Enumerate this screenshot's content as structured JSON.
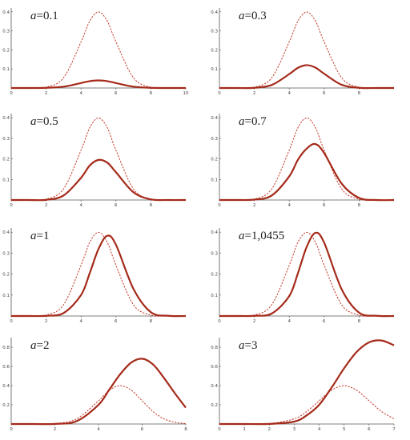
{
  "colors": {
    "curve": "#a52a1a",
    "reference": "#c0392b",
    "axis": "#555555"
  },
  "chart_data": [
    {
      "type": "line",
      "label_var": "a",
      "label_value": "=0.1",
      "xlim": [
        0,
        10
      ],
      "ylim": [
        0,
        0.42
      ],
      "xticks": [
        "0",
        "2",
        "4",
        "6",
        "8",
        "10"
      ],
      "yticks": [
        "0.1",
        "0.2",
        "0.3",
        "0.4"
      ],
      "x": [
        0,
        1,
        2,
        3,
        4,
        4.5,
        5,
        5.5,
        6,
        7,
        8,
        9,
        10
      ],
      "solid": [
        0,
        0,
        0.001,
        0.007,
        0.026,
        0.036,
        0.04,
        0.036,
        0.026,
        0.007,
        0.001,
        0,
        0
      ],
      "dashed": [
        0,
        0,
        0.004,
        0.054,
        0.242,
        0.352,
        0.399,
        0.352,
        0.242,
        0.054,
        0.004,
        0,
        0
      ]
    },
    {
      "type": "line",
      "label_var": "a",
      "label_value": "=0.3",
      "xlim": [
        0,
        10
      ],
      "ylim": [
        0,
        0.42
      ],
      "xticks": [
        "0",
        "2",
        "4",
        "6",
        "8"
      ],
      "yticks": [
        "0.1",
        "0.2",
        "0.3",
        "0.4"
      ],
      "x": [
        0,
        1,
        2,
        3,
        4,
        4.5,
        5,
        5.5,
        6,
        7,
        8,
        9,
        10
      ],
      "solid": [
        0,
        0,
        0.001,
        0.016,
        0.073,
        0.106,
        0.12,
        0.107,
        0.075,
        0.017,
        0.001,
        0,
        0
      ],
      "dashed": [
        0,
        0,
        0.004,
        0.054,
        0.242,
        0.352,
        0.399,
        0.352,
        0.242,
        0.054,
        0.004,
        0,
        0
      ]
    },
    {
      "type": "line",
      "label_var": "a",
      "label_value": "=0.5",
      "xlim": [
        0,
        10
      ],
      "ylim": [
        0,
        0.42
      ],
      "xticks": [
        "0",
        "2",
        "4",
        "6",
        "8"
      ],
      "yticks": [
        "0.1",
        "0.2",
        "0.3",
        "0.4"
      ],
      "x": [
        0,
        1,
        2,
        3,
        4,
        4.5,
        5,
        5.5,
        6,
        7,
        8,
        9,
        10
      ],
      "solid": [
        0,
        0,
        0.001,
        0.022,
        0.108,
        0.168,
        0.195,
        0.182,
        0.135,
        0.038,
        0.003,
        0,
        0
      ],
      "dashed": [
        0,
        0,
        0.004,
        0.054,
        0.242,
        0.352,
        0.399,
        0.352,
        0.242,
        0.054,
        0.004,
        0,
        0
      ]
    },
    {
      "type": "line",
      "label_var": "a",
      "label_value": "=0.7",
      "xlim": [
        0,
        10
      ],
      "ylim": [
        0,
        0.42
      ],
      "xticks": [
        "0",
        "2",
        "4",
        "6",
        "8"
      ],
      "yticks": [
        "0.1",
        "0.2",
        "0.3",
        "0.4"
      ],
      "x": [
        0,
        1,
        2,
        3,
        4,
        4.5,
        5,
        5.5,
        6,
        7,
        8,
        9,
        10
      ],
      "solid": [
        0,
        0,
        0.002,
        0.022,
        0.115,
        0.196,
        0.25,
        0.272,
        0.228,
        0.08,
        0.01,
        0,
        0
      ],
      "dashed": [
        0,
        0,
        0.004,
        0.054,
        0.242,
        0.352,
        0.399,
        0.352,
        0.242,
        0.054,
        0.004,
        0,
        0
      ]
    },
    {
      "type": "line",
      "label_var": "a",
      "label_value": "=1",
      "xlim": [
        0,
        10
      ],
      "ylim": [
        0,
        0.42
      ],
      "xticks": [
        "0",
        "2",
        "4",
        "6",
        "8"
      ],
      "yticks": [
        "0.1",
        "0.2",
        "0.3",
        "0.4"
      ],
      "x": [
        0,
        1,
        2,
        3,
        4,
        4.5,
        5,
        5.5,
        6,
        7,
        8,
        9,
        10
      ],
      "solid": [
        0,
        0,
        0.001,
        0.014,
        0.1,
        0.205,
        0.32,
        0.383,
        0.34,
        0.13,
        0.018,
        0.001,
        0
      ],
      "dashed": [
        0,
        0,
        0.004,
        0.054,
        0.242,
        0.352,
        0.399,
        0.352,
        0.242,
        0.054,
        0.004,
        0,
        0
      ]
    },
    {
      "type": "line",
      "label_var": "a",
      "label_value": "=1,0455",
      "xlim": [
        0,
        10
      ],
      "ylim": [
        0,
        0.42
      ],
      "xticks": [
        "0",
        "2",
        "4",
        "6",
        "8"
      ],
      "yticks": [
        "0.1",
        "0.2",
        "0.3",
        "0.4"
      ],
      "x": [
        0,
        1,
        2,
        3,
        4,
        4.5,
        5,
        5.5,
        6,
        7,
        8,
        9,
        10
      ],
      "solid": [
        0,
        0,
        0.001,
        0.012,
        0.095,
        0.205,
        0.33,
        0.397,
        0.35,
        0.128,
        0.016,
        0.001,
        0
      ],
      "dashed": [
        0,
        0,
        0.004,
        0.054,
        0.242,
        0.352,
        0.399,
        0.352,
        0.242,
        0.054,
        0.004,
        0,
        0
      ]
    },
    {
      "type": "line",
      "label_var": "a",
      "label_value": "=2",
      "xlim": [
        0,
        8
      ],
      "ylim": [
        0,
        0.9
      ],
      "xticks": [
        "0",
        "2",
        "4",
        "6",
        "8"
      ],
      "yticks": [
        "0.2",
        "0.4",
        "0.6",
        "0.8"
      ],
      "x": [
        0,
        1,
        2,
        3,
        4,
        4.5,
        5,
        5.5,
        6,
        6.5,
        7,
        7.5,
        8
      ],
      "solid": [
        0,
        0,
        0.001,
        0.03,
        0.2,
        0.36,
        0.52,
        0.64,
        0.68,
        0.62,
        0.48,
        0.32,
        0.17
      ],
      "dashed": [
        0,
        0,
        0.004,
        0.054,
        0.242,
        0.352,
        0.399,
        0.352,
        0.242,
        0.13,
        0.054,
        0.018,
        0.004
      ]
    },
    {
      "type": "line",
      "label_var": "a",
      "label_value": "=3",
      "xlim": [
        0,
        7
      ],
      "ylim": [
        0,
        0.9
      ],
      "xticks": [
        "0",
        "1",
        "2",
        "3",
        "4",
        "5",
        "6",
        "7"
      ],
      "yticks": [
        "0.2",
        "0.4",
        "0.6",
        "0.8"
      ],
      "x": [
        0,
        1,
        2,
        3,
        3.5,
        4,
        4.5,
        5,
        5.5,
        6,
        6.5,
        7
      ],
      "solid": [
        0,
        0,
        0.001,
        0.025,
        0.09,
        0.2,
        0.38,
        0.58,
        0.75,
        0.85,
        0.87,
        0.82
      ],
      "dashed": [
        0,
        0,
        0.004,
        0.054,
        0.13,
        0.242,
        0.352,
        0.399,
        0.352,
        0.242,
        0.13,
        0.054
      ]
    }
  ]
}
